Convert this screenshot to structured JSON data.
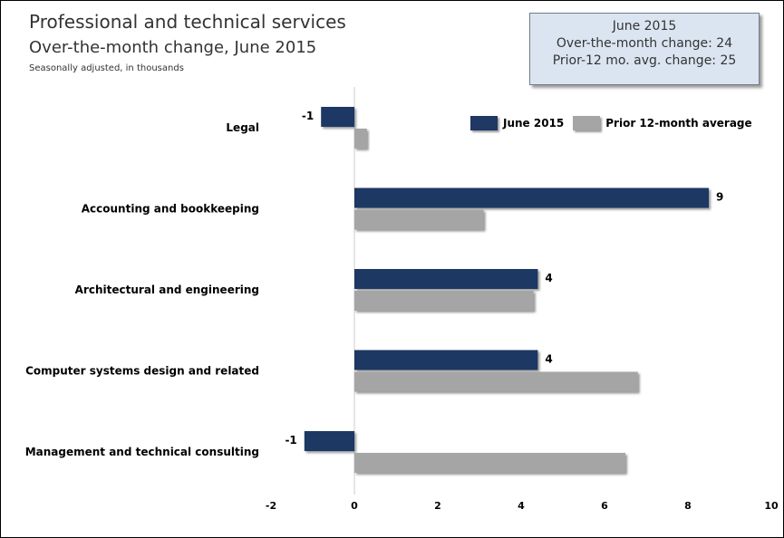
{
  "header": {
    "title": "Professional and technical services",
    "subtitle": "Over-the-month change, June 2015",
    "note": "Seasonally adjusted, in thousands"
  },
  "infobox": {
    "line1": "June 2015",
    "line2": "Over-the-month change: 24",
    "line3": "Prior-12 mo. avg. change: 25"
  },
  "colors": {
    "june": "#1f3864",
    "prior": "#a5a5a5"
  },
  "chart_data": {
    "type": "bar",
    "orientation": "horizontal",
    "categories": [
      "Legal",
      "Accounting and bookkeeping",
      "Architectural and engineering",
      "Computer systems design and related",
      "Management and technical consulting"
    ],
    "series": [
      {
        "name": "June 2015",
        "values": [
          -0.8,
          8.5,
          4.4,
          4.4,
          -1.2
        ],
        "labels": [
          "-1",
          "9",
          "4",
          "4",
          "-1"
        ]
      },
      {
        "name": "Prior 12-month average",
        "values": [
          0.3,
          3.1,
          4.3,
          6.8,
          6.5
        ]
      }
    ],
    "xlim": [
      -2,
      10
    ],
    "xticks": [
      "-2",
      "0",
      "2",
      "4",
      "6",
      "8",
      "10"
    ],
    "legend": "top-right",
    "grid": false
  }
}
